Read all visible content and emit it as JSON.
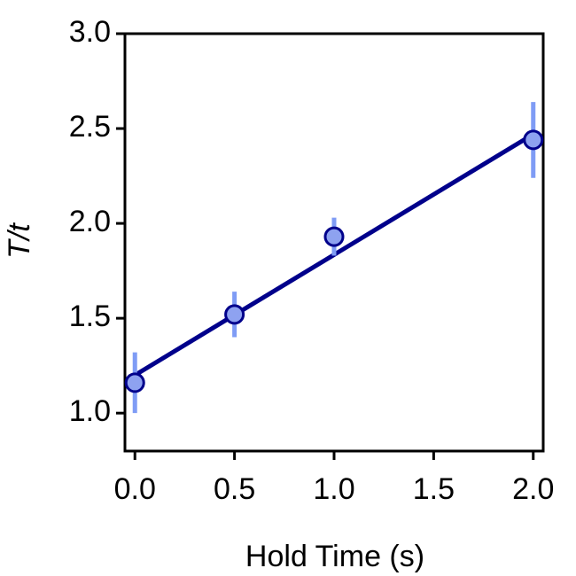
{
  "chart_data": {
    "type": "scatter",
    "xlabel": "Hold Time (s)",
    "ylabel": "T/t",
    "xlim": [
      -0.05,
      2.05
    ],
    "ylim": [
      0.8,
      3.0
    ],
    "xticks": [
      {
        "value": 0,
        "label": "0.0"
      },
      0.5,
      {
        "value": 1,
        "label": "1.0"
      },
      1.5,
      {
        "value": 2,
        "label": "2.0"
      }
    ],
    "yticks": [
      {
        "value": 1,
        "label": "1.0"
      },
      1.5,
      {
        "value": 2,
        "label": "2.0"
      },
      2.5,
      {
        "value": 3,
        "label": "3.0"
      }
    ],
    "series": [
      {
        "x": [
          0,
          0.5,
          1.0,
          2.0
        ],
        "values": [
          1.16,
          1.52,
          1.93,
          2.44
        ],
        "errors": [
          0.16,
          0.12,
          0.1,
          0.2
        ],
        "color": "#8ea2f0",
        "edge_color": "#00008b",
        "error_color": "#7f9cf5"
      }
    ],
    "fit": {
      "x": [
        0,
        2.0
      ],
      "values": [
        1.2,
        2.47
      ],
      "color": "#00008b"
    }
  }
}
